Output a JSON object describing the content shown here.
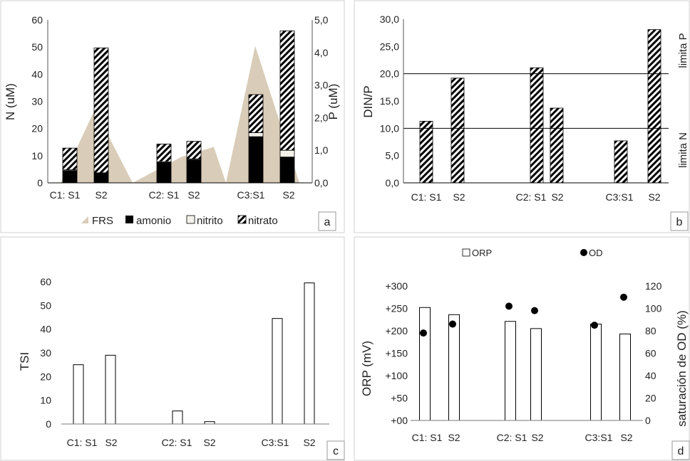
{
  "colors": {
    "frs": "#d9ccb8",
    "amonio": "#000000",
    "nitrito": "#f2f2ea",
    "nitrato_fg": "#000000",
    "nitrato_bg": "#ffffff",
    "line": "#000000",
    "panel_border": "#d0d0d0"
  },
  "chart_data": [
    {
      "panel": "a",
      "type": "bar",
      "stacked": true,
      "categories": [
        "C1: S1",
        "S2",
        "C2: S1",
        "S2",
        "C3:S1",
        "S2"
      ],
      "ylabel": "N (uM)",
      "y2label": "P (uM)",
      "ylim": [
        0,
        60
      ],
      "y2lim": [
        0,
        5
      ],
      "yticks": [
        "0",
        "10",
        "20",
        "30",
        "40",
        "50",
        "60"
      ],
      "y2ticks": [
        "0,0",
        "1,0",
        "2,0",
        "3,0",
        "4,0",
        "5,0"
      ],
      "legend_position": "bottom",
      "series": [
        {
          "name": "amonio",
          "values": [
            4.5,
            3.5,
            7.5,
            8.5,
            17,
            9.5
          ]
        },
        {
          "name": "nitrito",
          "values": [
            0.3,
            0.2,
            0.3,
            0.3,
            1.5,
            2.5
          ]
        },
        {
          "name": "nitrato",
          "values": [
            8,
            46,
            6.5,
            6.5,
            14,
            44
          ]
        }
      ],
      "area_series": {
        "name": "FRS",
        "axis": "secondary",
        "points": [
          [
            0,
            0
          ],
          [
            1,
            2.25
          ],
          [
            2,
            0
          ],
          [
            3,
            0.8
          ],
          [
            4,
            1.1
          ],
          [
            5,
            0
          ],
          [
            6,
            4.2
          ],
          [
            7,
            0
          ]
        ]
      }
    },
    {
      "panel": "b",
      "type": "bar",
      "categories": [
        "C1: S1",
        "S2",
        "C2: S1",
        "S2",
        "C3:S1",
        "S2"
      ],
      "ylabel": "DIN/P",
      "ylim": [
        0,
        30
      ],
      "yticks": [
        "0,0",
        "5,0",
        "10,0",
        "15,0",
        "20,0",
        "25,0",
        "30,0"
      ],
      "values": [
        11.3,
        19.2,
        21.1,
        13.7,
        7.7,
        28.1
      ],
      "reference_lines": [
        {
          "value": 20,
          "label": "limita P"
        },
        {
          "value": 10,
          "label": "limita N"
        }
      ]
    },
    {
      "panel": "c",
      "type": "bar",
      "categories": [
        "C1: S1",
        "S2",
        "C2: S1",
        "S2",
        "C3:S1",
        "S2"
      ],
      "ylabel": "TSI",
      "ylim": [
        0,
        60
      ],
      "yticks": [
        "0",
        "10",
        "20",
        "30",
        "40",
        "50",
        "60"
      ],
      "values": [
        25,
        29,
        5.5,
        1,
        44.5,
        59.5
      ]
    },
    {
      "panel": "d",
      "type": "bar",
      "categories": [
        "C1: S1",
        "S2",
        "C2: S1",
        "S2",
        "C3:S1",
        "S2"
      ],
      "ylabel": "ORP (mV)",
      "y2label": "saturación de OD (%)",
      "ylim": [
        0,
        300
      ],
      "y2lim": [
        0,
        120
      ],
      "yticks": [
        "+00",
        "+50",
        "+100",
        "+150",
        "+200",
        "+250",
        "+300"
      ],
      "y2ticks": [
        "0",
        "20",
        "40",
        "60",
        "80",
        "100",
        "120"
      ],
      "legend_position": "top",
      "series": [
        {
          "name": "ORP",
          "type": "bar",
          "values": [
            252,
            236,
            221,
            205,
            215,
            193
          ]
        },
        {
          "name": "OD",
          "type": "scatter",
          "axis": "secondary",
          "values": [
            78,
            86,
            102,
            98,
            85,
            110
          ]
        }
      ]
    }
  ]
}
